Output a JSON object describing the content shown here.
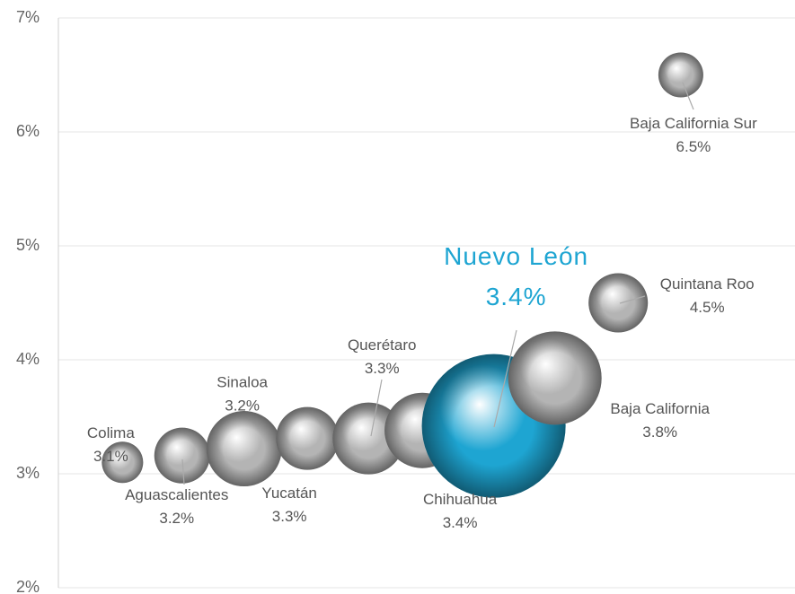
{
  "chart_data": {
    "type": "bubble",
    "categories": [
      "Colima",
      "Aguascalientes",
      "Sinaloa",
      "Yucatán",
      "Querétaro",
      "Chihuahua",
      "Nuevo León",
      "Baja California",
      "Quintana Roo",
      "Baja California Sur"
    ],
    "x": [
      8.7,
      16.8,
      25.2,
      33.8,
      42.1,
      49.4,
      59.1,
      67.4,
      76.0,
      84.5
    ],
    "values": [
      3.1,
      3.16,
      3.22,
      3.31,
      3.31,
      3.38,
      3.42,
      3.84,
      4.5,
      6.5
    ],
    "value_labels": [
      "3.1%",
      "3.2%",
      "3.2%",
      "3.3%",
      "3.3%",
      "3.4%",
      "3.4%",
      "3.8%",
      "4.5%",
      "6.5%"
    ],
    "sizes": [
      23,
      31,
      42,
      35,
      40,
      42,
      80,
      52,
      33,
      25
    ],
    "colors": [
      "#b4b4b4",
      "#b4b4b4",
      "#b4b4b4",
      "#b4b4b4",
      "#b4b4b4",
      "#b4b4b4",
      "#1ea5d2",
      "#b4b4b4",
      "#b4b4b4",
      "#b4b4b4"
    ],
    "xlim": [
      0,
      100
    ],
    "ylim": [
      2,
      7
    ],
    "yticks": [
      {
        "value": 2,
        "label": "2%"
      },
      {
        "value": 3,
        "label": "3%"
      },
      {
        "value": 4,
        "label": "4%"
      },
      {
        "value": 5,
        "label": "5%"
      },
      {
        "value": 6,
        "label": "6%"
      },
      {
        "value": 7,
        "label": "7%"
      }
    ],
    "grid": true
  }
}
